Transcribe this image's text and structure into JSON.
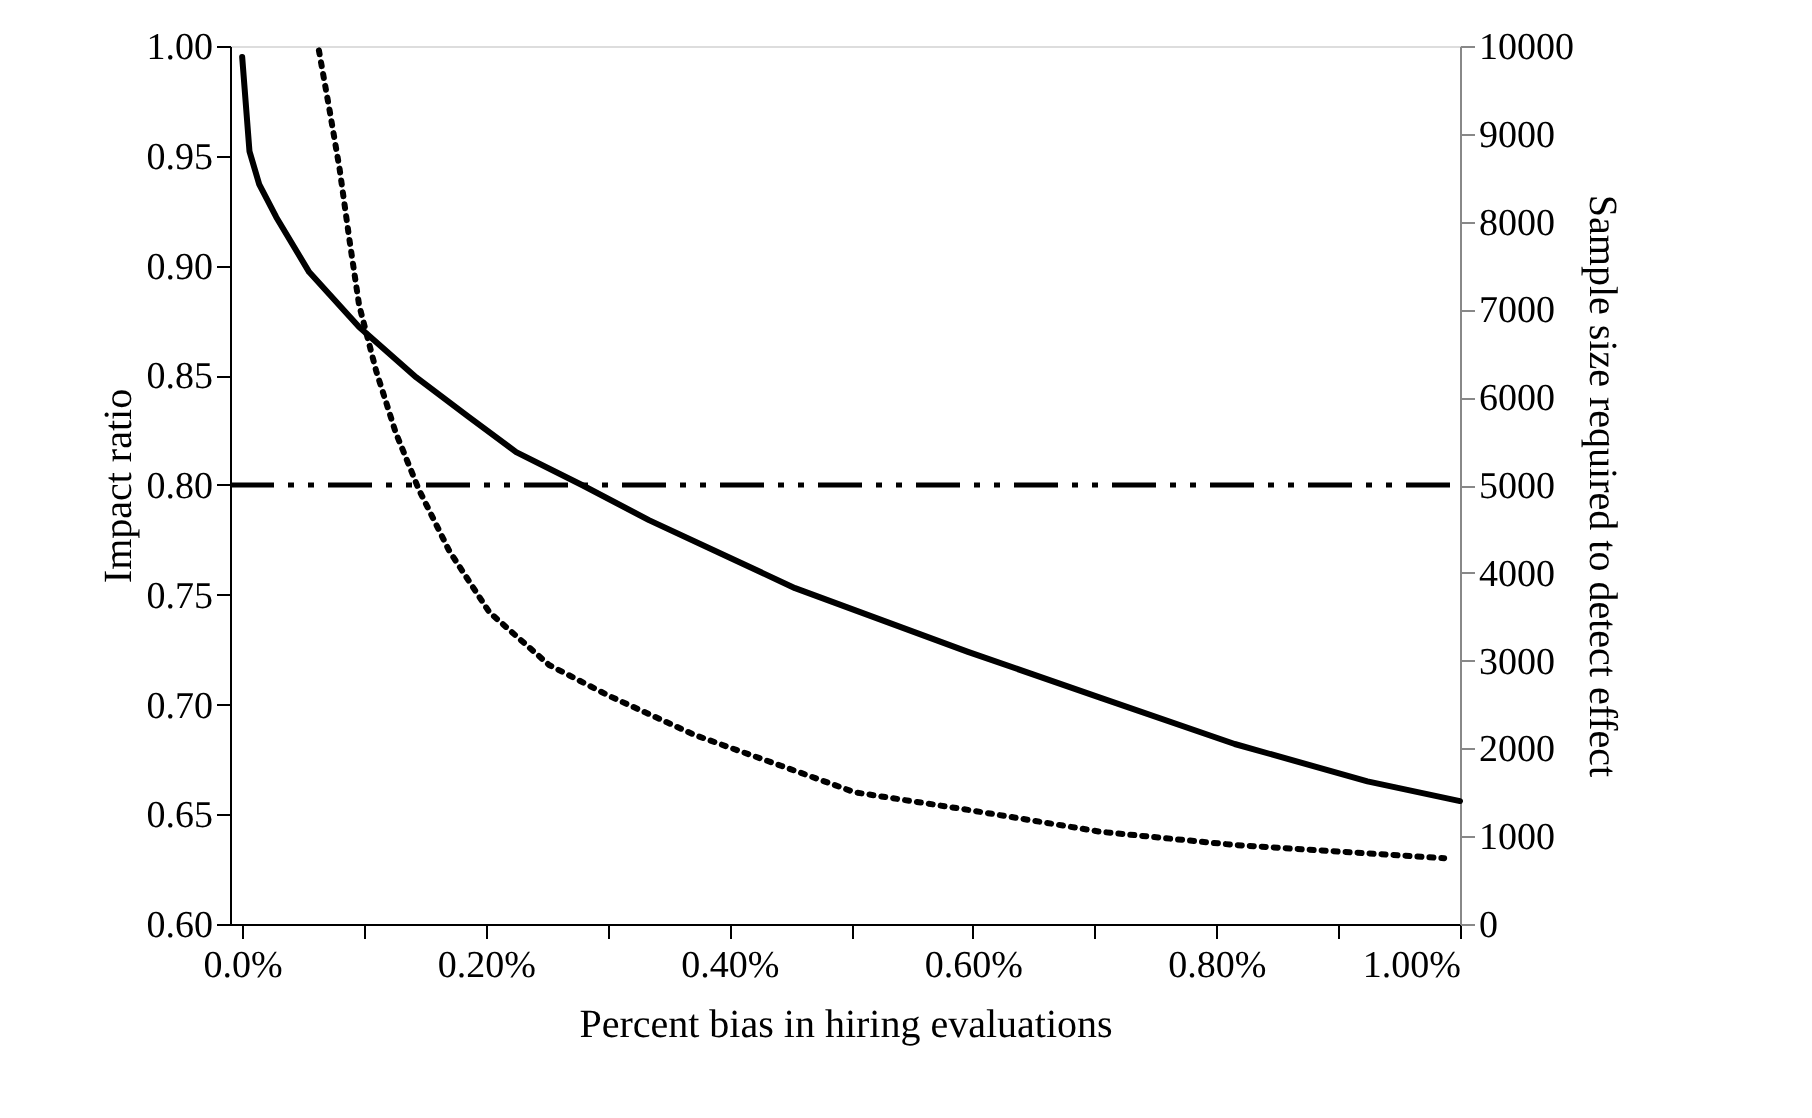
{
  "chart_data": {
    "type": "line",
    "xlabel": "Percent bias in hiring evaluations",
    "ylabel": "Impact ratio",
    "y2label": "Sample size required to detect effect",
    "xlim": [
      -0.01,
      1.0
    ],
    "xticks": [
      {
        "value": 0,
        "label": "0.0%"
      },
      {
        "value": 0.1,
        "label": null
      },
      {
        "value": 0.2,
        "label": "0.20%"
      },
      {
        "value": 0.3,
        "label": null
      },
      {
        "value": 0.4,
        "label": "0.40%"
      },
      {
        "value": 0.5,
        "label": null
      },
      {
        "value": 0.6,
        "label": "0.60%"
      },
      {
        "value": 0.7,
        "label": null
      },
      {
        "value": 0.8,
        "label": "0.80%"
      },
      {
        "value": 0.9,
        "label": null
      },
      {
        "value": 1.0,
        "label": "1.00%"
      }
    ],
    "ylim": [
      0.6,
      1.0
    ],
    "yticks": [
      {
        "value": 0.6,
        "label": "0.60"
      },
      {
        "value": 0.65,
        "label": "0.65"
      },
      {
        "value": 0.7,
        "label": "0.70"
      },
      {
        "value": 0.75,
        "label": "0.75"
      },
      {
        "value": 0.8,
        "label": "0.80"
      },
      {
        "value": 0.85,
        "label": "0.85"
      },
      {
        "value": 0.9,
        "label": "0.90"
      },
      {
        "value": 0.95,
        "label": "0.95"
      },
      {
        "value": 1.0,
        "label": "1.00"
      }
    ],
    "y2lim": [
      0,
      10000
    ],
    "y2ticks": [
      0,
      1000,
      2000,
      3000,
      4000,
      5000,
      6000,
      7000,
      8000,
      9000,
      10000
    ],
    "grid": false,
    "marker": "none",
    "ref_lines": [
      {
        "axis": "y",
        "value": 0.8,
        "color": "#000000",
        "line_style": "dashed"
      }
    ],
    "series": [
      {
        "color": "#000000",
        "line_style": "solid",
        "x": [
          0,
          0.006,
          0.014,
          0.028,
          0.055,
          0.096,
          0.143,
          0.186,
          0.225,
          0.279,
          0.334,
          0.4,
          0.454,
          0.503,
          0.596,
          0.705,
          0.815,
          0.924,
          1.0
        ],
        "values": [
          0.995,
          0.952,
          0.937,
          0.922,
          0.897,
          0.872,
          0.849,
          0.831,
          0.815,
          0.8,
          0.784,
          0.767,
          0.753,
          0.743,
          0.724,
          0.703,
          0.682,
          0.665,
          0.656
        ]
      },
      {
        "color": "#000000",
        "line_style": "dotted",
        "axis": "y2",
        "x": [
          0.063,
          0.072,
          0.08,
          0.088,
          0.096,
          0.11,
          0.126,
          0.145,
          0.17,
          0.203,
          0.252,
          0.301,
          0.372,
          0.443,
          0.503,
          0.596,
          0.705,
          0.815,
          0.987
        ],
        "values": [
          9950,
          9250,
          8600,
          7800,
          7050,
          6300,
          5600,
          4950,
          4250,
          3550,
          2950,
          2600,
          2150,
          1800,
          1500,
          1300,
          1050,
          900,
          750
        ]
      }
    ]
  }
}
